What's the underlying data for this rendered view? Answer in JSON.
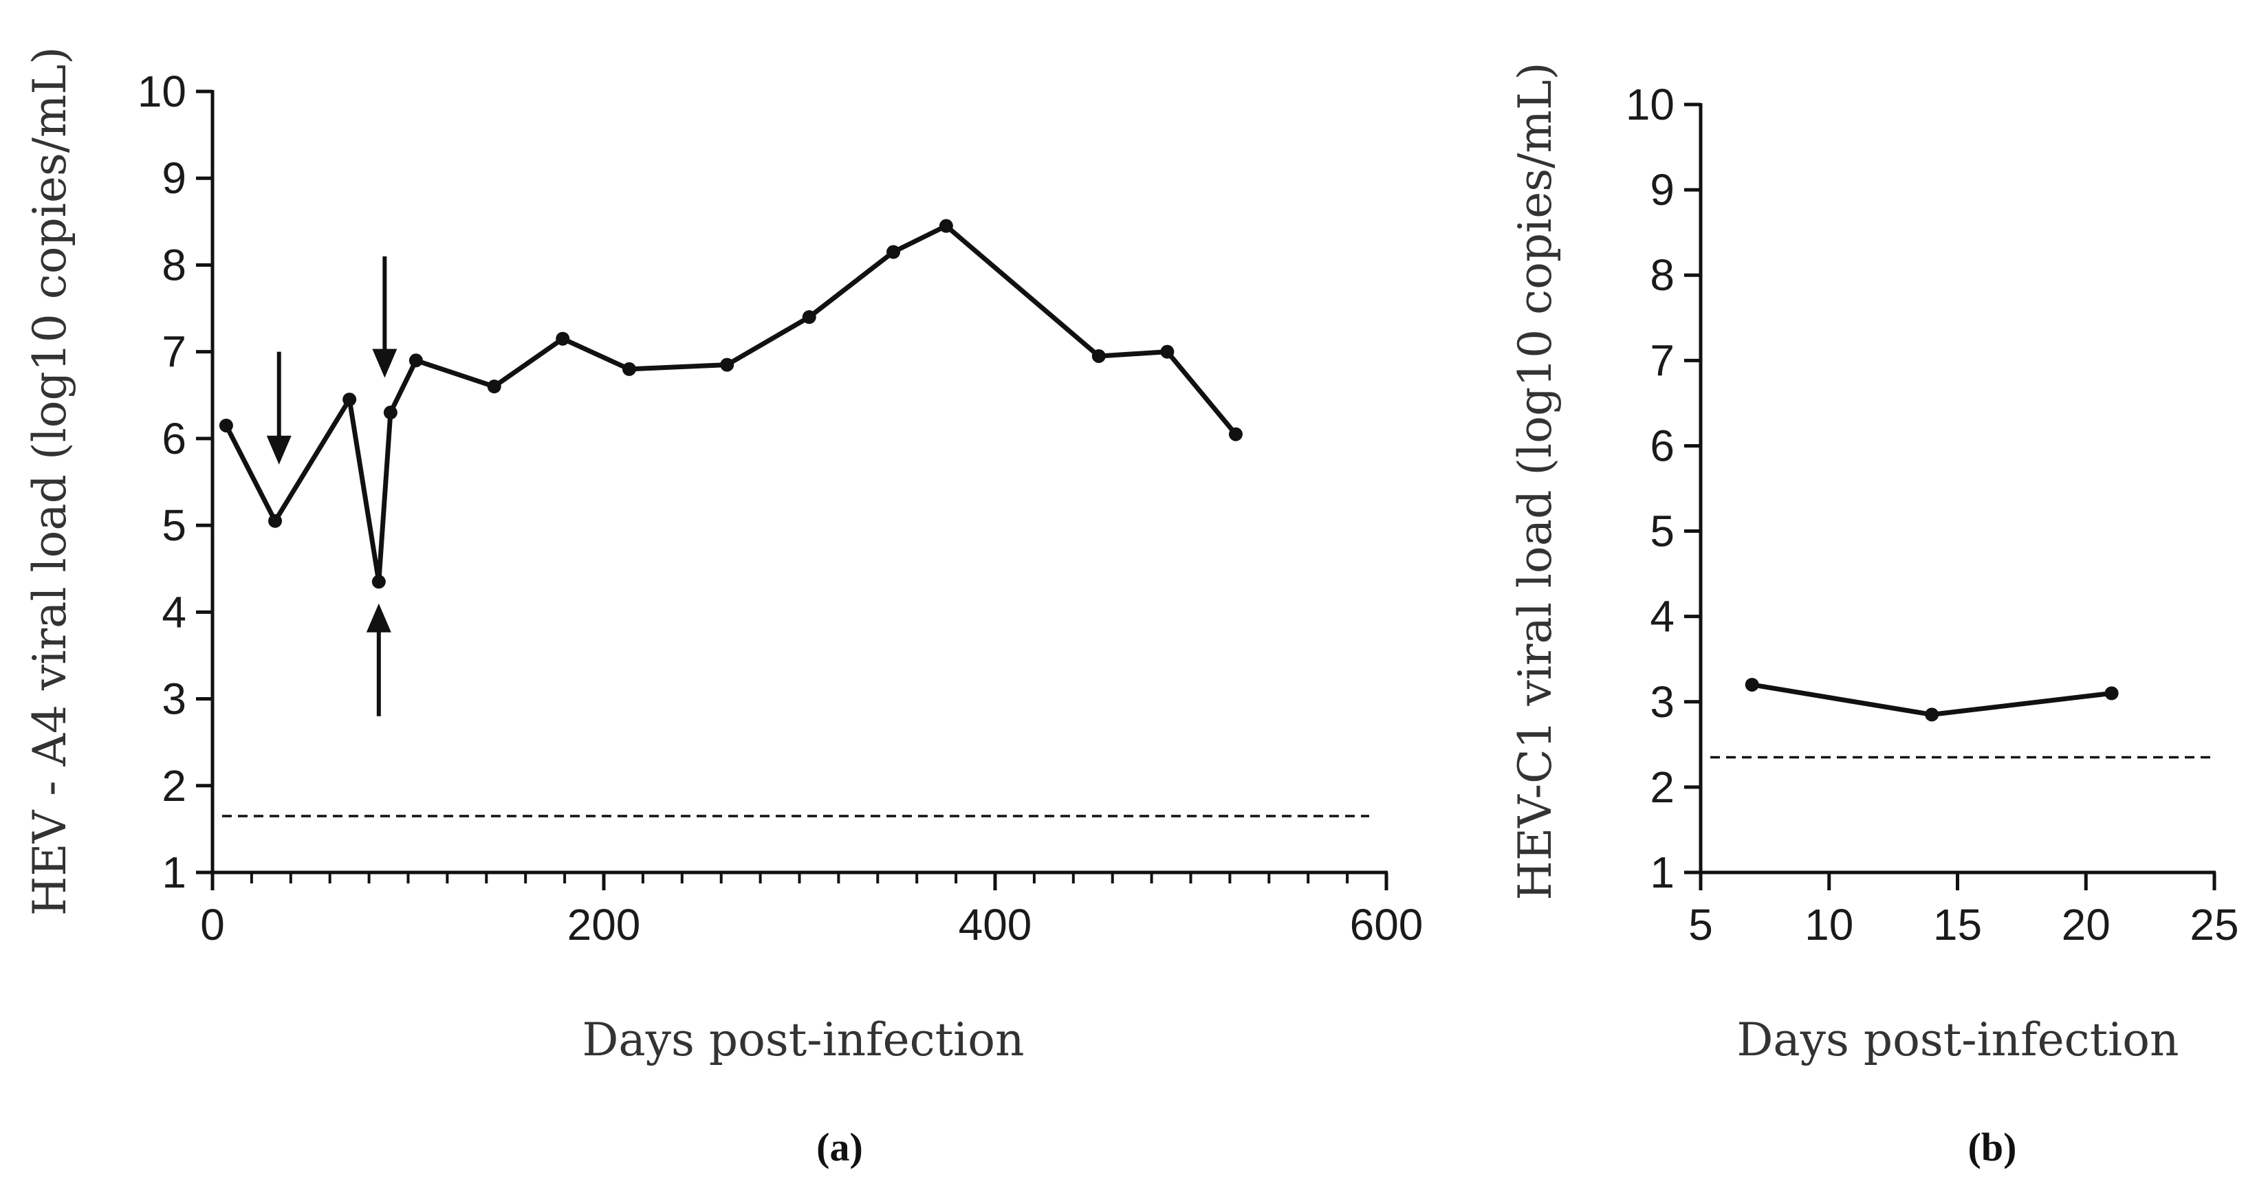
{
  "colors": {
    "line": "#111111",
    "axis": "#111111",
    "text": "#1a1a1a"
  },
  "chart_data": [
    {
      "type": "line",
      "panel_label": "(a)",
      "title": "",
      "xlabel": "Days post-infection",
      "ylabel": "HEV - A4 viral load (log10 copies/mL)",
      "xlim": [
        0,
        600
      ],
      "ylim": [
        1,
        10
      ],
      "xticks": [
        0,
        200,
        400,
        600
      ],
      "xtick_labels": [
        "0",
        "200",
        "400",
        "600"
      ],
      "x_minor_step": 20,
      "yticks": [
        1,
        2,
        3,
        4,
        5,
        6,
        7,
        8,
        9,
        10
      ],
      "ytick_labels": [
        "1",
        "2",
        "3",
        "4",
        "5",
        "6",
        "7",
        "8",
        "9",
        "10"
      ],
      "grid": false,
      "series": [
        {
          "name": "HEV-A4 viral load",
          "x": [
            7,
            32,
            70,
            85,
            91,
            104,
            144,
            179,
            213,
            263,
            305,
            348,
            375,
            453,
            488,
            523
          ],
          "y": [
            6.15,
            5.05,
            6.45,
            4.35,
            6.3,
            6.9,
            6.6,
            7.15,
            6.8,
            6.85,
            7.4,
            8.15,
            8.45,
            6.95,
            7.0,
            6.05
          ]
        }
      ],
      "reference_line": {
        "y": 1.65,
        "style": "dashed"
      },
      "annotations": [
        {
          "type": "arrow",
          "direction": "down",
          "x": 34,
          "y_tip": 5.7,
          "y_tail": 7.0
        },
        {
          "type": "arrow",
          "direction": "down",
          "x": 88,
          "y_tip": 6.7,
          "y_tail": 8.1
        },
        {
          "type": "arrow",
          "direction": "up",
          "x": 85,
          "y_tip": 4.1,
          "y_tail": 2.8
        }
      ]
    },
    {
      "type": "line",
      "panel_label": "(b)",
      "title": "",
      "xlabel": "Days post-infection",
      "ylabel": "HEV-C1 viral load (log10 copies/mL)",
      "xlim": [
        5,
        25
      ],
      "ylim": [
        1,
        10
      ],
      "xticks": [
        5,
        10,
        15,
        20,
        25
      ],
      "xtick_labels": [
        "5",
        "10",
        "15",
        "20",
        "25"
      ],
      "yticks": [
        1,
        2,
        3,
        4,
        5,
        6,
        7,
        8,
        9,
        10
      ],
      "ytick_labels": [
        "1",
        "2",
        "3",
        "4",
        "5",
        "6",
        "7",
        "8",
        "9",
        "10"
      ],
      "grid": false,
      "series": [
        {
          "name": "HEV-C1 viral load",
          "x": [
            7,
            14,
            21
          ],
          "y": [
            3.2,
            2.85,
            3.1
          ]
        }
      ],
      "reference_line": {
        "y": 2.35,
        "style": "dashed"
      },
      "annotations": []
    }
  ]
}
